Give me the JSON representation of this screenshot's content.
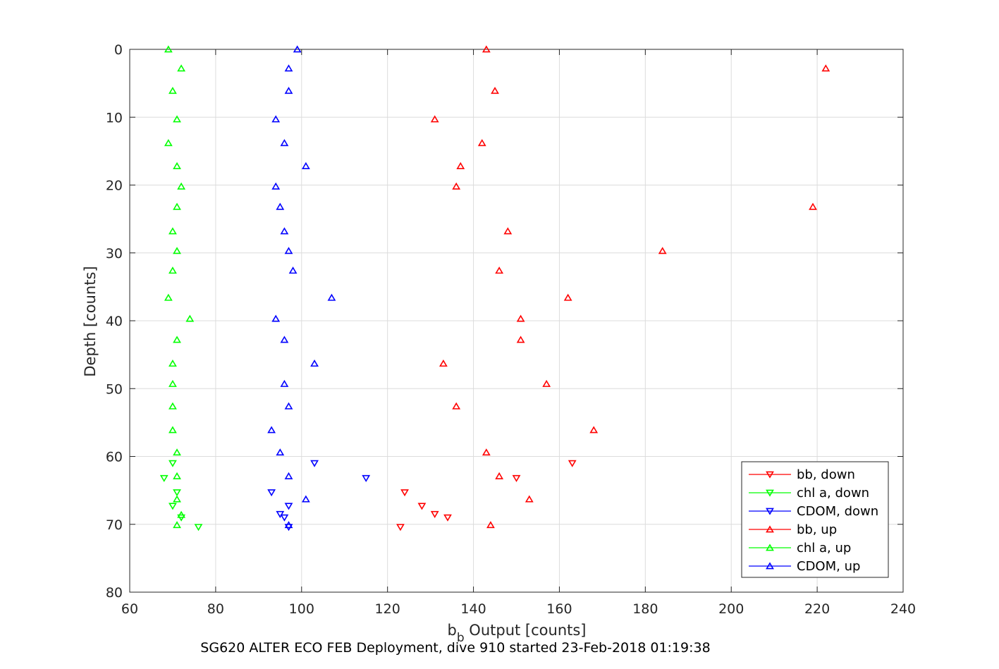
{
  "chart_data": {
    "type": "scatter",
    "title": "",
    "xlabel_main": "b",
    "xlabel_sub": "b",
    "xlabel_rest": " Output [counts]",
    "ylabel": "Depth [counts]",
    "caption": "SG620 ALTER ECO FEB Deployment, dive 910 started 23-Feb-2018 01:19:38",
    "xlim": [
      60,
      240
    ],
    "ylim": [
      0,
      80
    ],
    "y_reversed": true,
    "xticks": [
      60,
      80,
      100,
      120,
      140,
      160,
      180,
      200,
      220,
      240
    ],
    "yticks": [
      0,
      10,
      20,
      30,
      40,
      50,
      60,
      70,
      80
    ],
    "grid": true,
    "legend_position": "bottom-right",
    "series": [
      {
        "name": "bb, down",
        "color": "#ff0000",
        "marker": "triangle-down",
        "x": [
          163,
          150,
          124,
          128,
          131,
          134,
          123
        ],
        "y": [
          61.0,
          63.2,
          65.3,
          67.3,
          68.5,
          69.0,
          70.4
        ]
      },
      {
        "name": "chl a, down",
        "color": "#00ff00",
        "marker": "triangle-down",
        "x": [
          70,
          68,
          71,
          70,
          72,
          76
        ],
        "y": [
          61.0,
          63.2,
          65.3,
          67.3,
          69.0,
          70.4
        ]
      },
      {
        "name": "CDOM, down",
        "color": "#0000ff",
        "marker": "triangle-down",
        "x": [
          103,
          115,
          93,
          97,
          95,
          96,
          97
        ],
        "y": [
          61.0,
          63.2,
          65.3,
          67.3,
          68.5,
          69.0,
          70.4
        ]
      },
      {
        "name": "bb, up",
        "color": "#ff0000",
        "marker": "triangle-up",
        "x": [
          143,
          222,
          145,
          131,
          142,
          137,
          136,
          219,
          148,
          184,
          146,
          162,
          151,
          151,
          133,
          157,
          136,
          168,
          143,
          146,
          153,
          144
        ],
        "y": [
          0,
          2.8,
          6.1,
          10.3,
          13.8,
          17.2,
          20.2,
          23.2,
          26.8,
          29.7,
          32.6,
          36.6,
          39.7,
          42.8,
          46.3,
          49.3,
          52.6,
          56.1,
          59.4,
          62.9,
          66.3,
          70.1
        ]
      },
      {
        "name": "chl a, up",
        "color": "#00ff00",
        "marker": "triangle-up",
        "x": [
          69,
          72,
          70,
          71,
          69,
          71,
          72,
          71,
          70,
          71,
          70,
          69,
          74,
          71,
          70,
          70,
          70,
          70,
          71,
          71,
          71,
          72,
          71
        ],
        "y": [
          0,
          2.8,
          6.1,
          10.3,
          13.8,
          17.2,
          20.2,
          23.2,
          26.8,
          29.7,
          32.6,
          36.6,
          39.7,
          42.8,
          46.3,
          49.3,
          52.6,
          56.1,
          59.4,
          62.9,
          66.3,
          68.6,
          70.1
        ]
      },
      {
        "name": "CDOM, up",
        "color": "#0000ff",
        "marker": "triangle-up",
        "x": [
          99,
          97,
          97,
          94,
          96,
          101,
          94,
          95,
          96,
          97,
          98,
          107,
          94,
          96,
          103,
          96,
          97,
          93,
          95,
          97,
          101,
          97
        ],
        "y": [
          0,
          2.8,
          6.1,
          10.3,
          13.8,
          17.2,
          20.2,
          23.2,
          26.8,
          29.7,
          32.6,
          36.6,
          39.7,
          42.8,
          46.3,
          49.3,
          52.6,
          56.1,
          59.4,
          62.9,
          66.3,
          70.1
        ]
      }
    ]
  }
}
